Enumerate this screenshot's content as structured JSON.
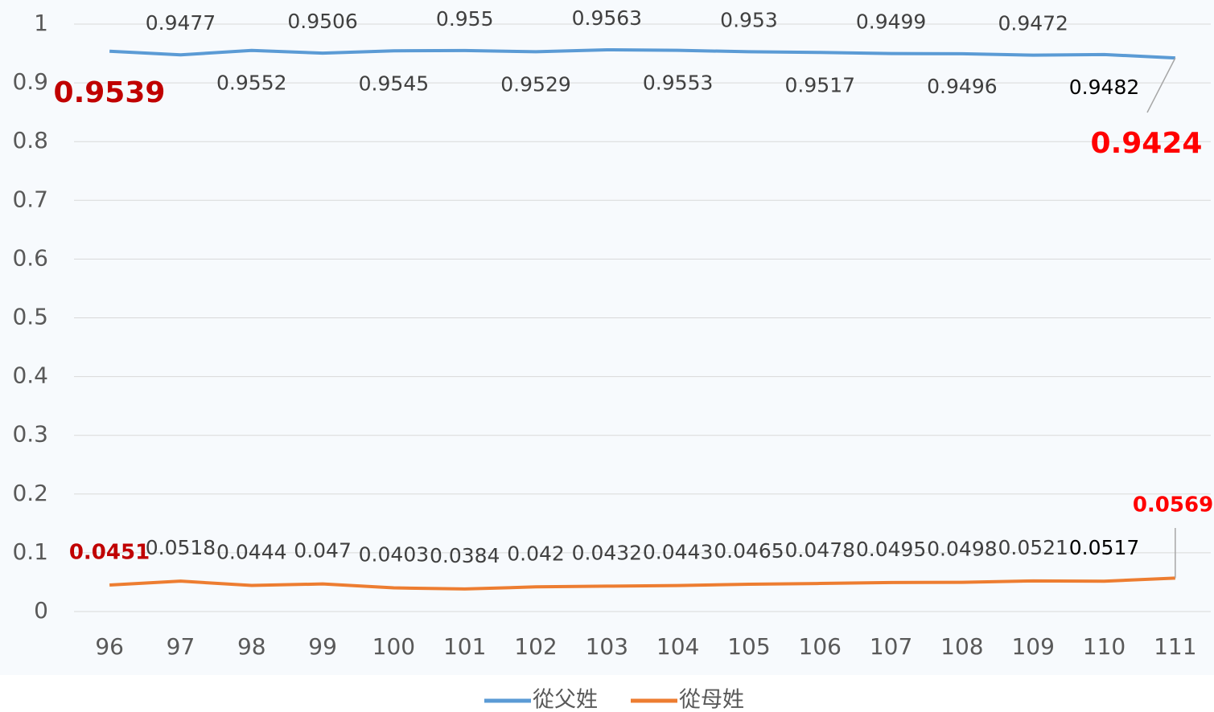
{
  "chart_data": {
    "type": "line",
    "categories": [
      "96",
      "97",
      "98",
      "99",
      "100",
      "101",
      "102",
      "103",
      "104",
      "105",
      "106",
      "107",
      "108",
      "109",
      "110",
      "111"
    ],
    "series": [
      {
        "name": "從父姓",
        "color": "#5b9bd5",
        "values": [
          0.9539,
          0.9477,
          0.9552,
          0.9506,
          0.9545,
          0.955,
          0.9529,
          0.9563,
          0.9553,
          0.953,
          0.9517,
          0.9499,
          0.9496,
          0.9472,
          0.9482,
          0.9424
        ]
      },
      {
        "name": "從母姓",
        "color": "#ed7d31",
        "values": [
          0.0451,
          0.0518,
          0.0444,
          0.047,
          0.0403,
          0.0384,
          0.042,
          0.0432,
          0.0443,
          0.0465,
          0.0478,
          0.0495,
          0.0498,
          0.0521,
          0.0517,
          0.0569
        ]
      }
    ],
    "ylim": [
      0,
      1
    ],
    "yticks": [
      0,
      0.1,
      0.2,
      0.3,
      0.4,
      0.5,
      0.6,
      0.7,
      0.8,
      0.9,
      1
    ],
    "grid": true,
    "legend": "bottom"
  }
}
